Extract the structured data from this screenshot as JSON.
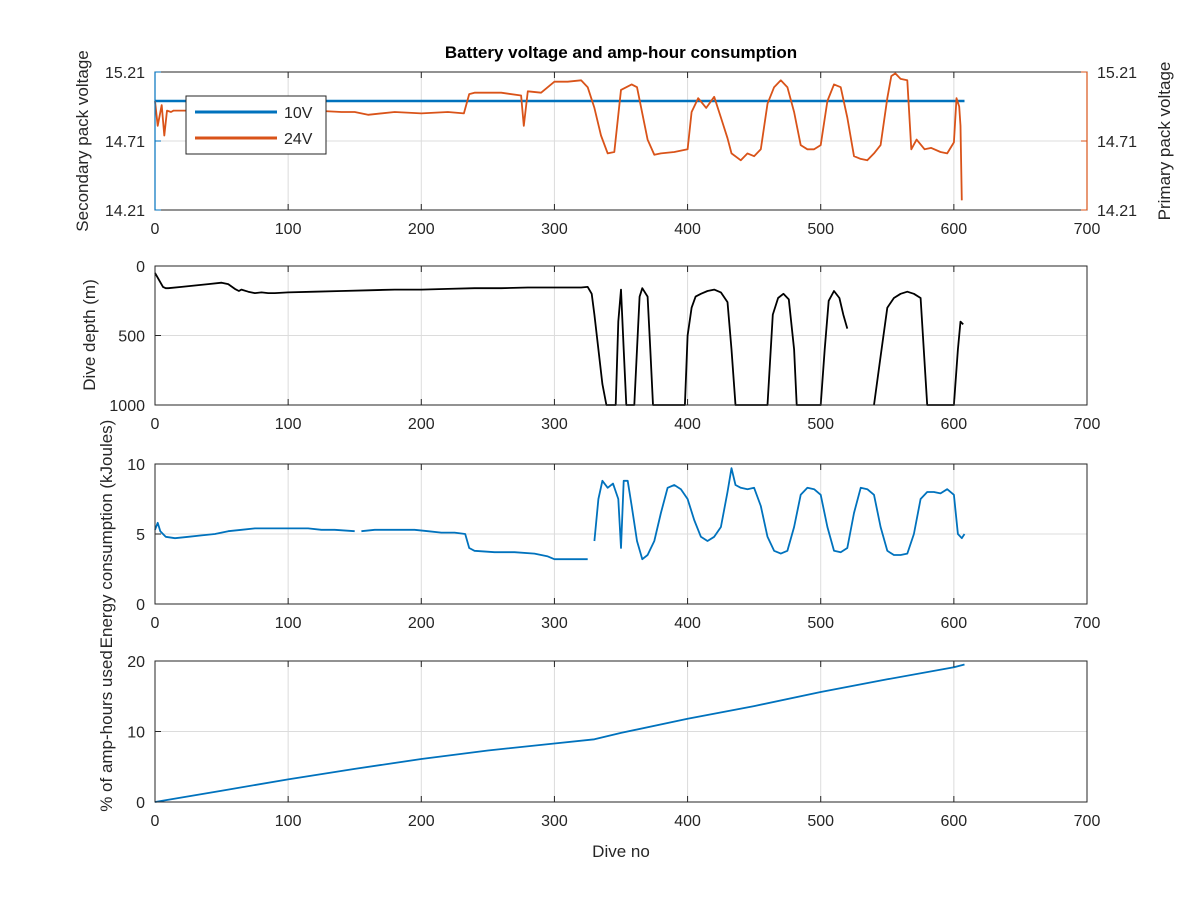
{
  "colors": {
    "blue": "#0072BD",
    "orange": "#D95319",
    "black": "#000000",
    "axis": "#262626",
    "grid": "#dcdcdc"
  },
  "chart_data": [
    {
      "type": "line",
      "title": "Battery voltage and amp-hour consumption",
      "xlabel": "",
      "ylabel_left": "Secondary pack voltage",
      "ylabel_right": "Primary pack voltage",
      "xlim": [
        0,
        700
      ],
      "ylim": [
        14.21,
        15.21
      ],
      "xticks": [
        "0",
        "100",
        "200",
        "300",
        "400",
        "500",
        "600",
        "700"
      ],
      "yticks_left": [
        "14.21",
        "14.71",
        "15.21"
      ],
      "yticks_right": [
        "14.21",
        "14.71",
        "15.21"
      ],
      "grid": true,
      "legend_position": "top-left",
      "legend": [
        "10V",
        "24V"
      ],
      "series": [
        {
          "name": "10V",
          "axis": "left",
          "color": "blue",
          "x": [
            0,
            100,
            200,
            300,
            400,
            500,
            600,
            608
          ],
          "y": [
            15.0,
            15.0,
            15.0,
            15.0,
            15.0,
            15.0,
            15.0,
            15.0
          ]
        },
        {
          "name": "24V",
          "axis": "right",
          "color": "orange",
          "x": [
            0,
            2,
            5,
            7,
            9,
            12,
            14,
            20,
            40,
            60,
            80,
            100,
            120,
            140,
            150,
            160,
            180,
            200,
            220,
            232,
            236,
            240,
            260,
            275,
            277,
            280,
            290,
            300,
            310,
            320,
            325,
            330,
            335,
            340,
            345,
            350,
            358,
            362,
            370,
            375,
            380,
            390,
            400,
            403,
            408,
            414,
            420,
            425,
            430,
            433,
            440,
            445,
            450,
            455,
            460,
            465,
            470,
            475,
            480,
            485,
            490,
            495,
            500,
            505,
            510,
            515,
            520,
            525,
            530,
            535,
            540,
            545,
            550,
            553,
            556,
            560,
            565,
            568,
            572,
            578,
            583,
            590,
            595,
            600,
            602,
            604,
            605,
            606
          ],
          "y": [
            15.0,
            14.82,
            14.97,
            14.75,
            14.93,
            14.92,
            14.93,
            14.93,
            14.93,
            14.93,
            14.92,
            14.92,
            14.93,
            14.92,
            14.92,
            14.9,
            14.92,
            14.91,
            14.92,
            14.91,
            15.05,
            15.06,
            15.06,
            15.04,
            14.82,
            15.07,
            15.06,
            15.14,
            15.14,
            15.15,
            15.1,
            14.95,
            14.75,
            14.62,
            14.63,
            15.08,
            15.12,
            15.1,
            14.72,
            14.61,
            14.62,
            14.63,
            14.65,
            14.92,
            15.02,
            14.95,
            15.03,
            14.88,
            14.73,
            14.62,
            14.57,
            14.62,
            14.6,
            14.65,
            14.98,
            15.1,
            15.15,
            15.1,
            14.92,
            14.68,
            14.65,
            14.65,
            14.68,
            15.0,
            15.12,
            15.1,
            14.88,
            14.6,
            14.58,
            14.57,
            14.62,
            14.68,
            15.02,
            15.18,
            15.2,
            15.16,
            15.15,
            14.65,
            14.72,
            14.65,
            14.66,
            14.63,
            14.62,
            14.7,
            15.02,
            14.96,
            14.82,
            14.28
          ]
        }
      ]
    },
    {
      "type": "line",
      "title": "",
      "xlabel": "",
      "ylabel": "Dive depth (m)",
      "xlim": [
        0,
        700
      ],
      "ylim": [
        0,
        1000
      ],
      "y_reversed": true,
      "xticks": [
        "0",
        "100",
        "200",
        "300",
        "400",
        "500",
        "600",
        "700"
      ],
      "yticks": [
        "0",
        "500",
        "1000"
      ],
      "grid": true,
      "series": [
        {
          "color": "black",
          "x": [
            0,
            3,
            6,
            8,
            10,
            20,
            30,
            40,
            50,
            55,
            60,
            63,
            65,
            70,
            75,
            80,
            85,
            90,
            100,
            120,
            140,
            160,
            180,
            200,
            220,
            240,
            260,
            280,
            300,
            310,
            320,
            325,
            328,
            330,
            333,
            336,
            339,
            342,
            344,
            346,
            348,
            350,
            352,
            354,
            356,
            358,
            360,
            362,
            364,
            366,
            370,
            372,
            374,
            376,
            378,
            380,
            385,
            390,
            395,
            398,
            400,
            403,
            406,
            410,
            415,
            420,
            425,
            430,
            433,
            436,
            440,
            445,
            450,
            455,
            460,
            464,
            468,
            472,
            476,
            480,
            482,
            485,
            490,
            495,
            500,
            503,
            506,
            510,
            514,
            517,
            520
          ],
          "y": [
            50,
            100,
            150,
            160,
            160,
            150,
            140,
            130,
            120,
            130,
            165,
            180,
            170,
            185,
            195,
            190,
            195,
            195,
            190,
            185,
            180,
            175,
            170,
            170,
            165,
            160,
            160,
            155,
            155,
            155,
            155,
            150,
            200,
            350,
            600,
            850,
            1000,
            1000,
            1000,
            1000,
            400,
            170,
            600,
            1000,
            1000,
            1000,
            1000,
            600,
            220,
            160,
            220,
            600,
            1000,
            1000,
            1000,
            1000,
            1000,
            1000,
            1000,
            1000,
            500,
            300,
            220,
            200,
            180,
            170,
            190,
            260,
            600,
            1000,
            1000,
            1000,
            1000,
            1000,
            1000,
            350,
            230,
            200,
            240,
            600,
            1000,
            1000,
            1000,
            1000,
            1000,
            600,
            250,
            180,
            230,
            350,
            450
          ]
        },
        {
          "color": "black",
          "x": [
            540,
            545,
            550,
            555,
            560,
            565,
            570,
            575,
            580,
            585,
            590,
            595,
            600,
            603,
            605,
            607
          ],
          "y": [
            1000,
            650,
            300,
            230,
            200,
            185,
            200,
            230,
            1000,
            1000,
            1000,
            1000,
            1000,
            600,
            400,
            420
          ]
        }
      ]
    },
    {
      "type": "line",
      "title": "",
      "xlabel": "",
      "ylabel": "Energy consumption (kJoules)",
      "xlim": [
        0,
        700
      ],
      "ylim": [
        0,
        10
      ],
      "xticks": [
        "0",
        "100",
        "200",
        "300",
        "400",
        "500",
        "600",
        "700"
      ],
      "yticks": [
        "0",
        "5",
        "10"
      ],
      "grid": true,
      "series": [
        {
          "color": "blue",
          "x": [
            0,
            2,
            4,
            8,
            15,
            25,
            35,
            45,
            55,
            65,
            75,
            85,
            95,
            105,
            115,
            125,
            135,
            150
          ],
          "y": [
            5.3,
            5.8,
            5.2,
            4.8,
            4.7,
            4.8,
            4.9,
            5.0,
            5.2,
            5.3,
            5.4,
            5.4,
            5.4,
            5.4,
            5.4,
            5.3,
            5.3,
            5.2
          ]
        },
        {
          "color": "blue",
          "x": [
            155,
            165,
            175,
            185,
            195,
            205,
            215,
            225,
            233,
            236,
            240,
            255,
            270,
            285,
            295,
            300,
            310,
            325
          ],
          "y": [
            5.2,
            5.3,
            5.3,
            5.3,
            5.3,
            5.2,
            5.1,
            5.1,
            5.0,
            4.0,
            3.8,
            3.7,
            3.7,
            3.6,
            3.4,
            3.2,
            3.2,
            3.2
          ]
        },
        {
          "color": "blue",
          "x": [
            330,
            333,
            336,
            340,
            344,
            348,
            350,
            352,
            355,
            358,
            362,
            366,
            370,
            375,
            380,
            385,
            390,
            395,
            400,
            405,
            410,
            415,
            420,
            425,
            430,
            433,
            436,
            440,
            445,
            450,
            455,
            460,
            465,
            470,
            475,
            480,
            485,
            490,
            495,
            500,
            505,
            510,
            515,
            520,
            525,
            530,
            535,
            540,
            545,
            550,
            555,
            560,
            565,
            570,
            575,
            580,
            585,
            590,
            595,
            600,
            603,
            606,
            608
          ],
          "y": [
            4.5,
            7.5,
            8.8,
            8.3,
            8.6,
            7.5,
            4.0,
            8.8,
            8.8,
            7.0,
            4.5,
            3.2,
            3.5,
            4.5,
            6.5,
            8.3,
            8.5,
            8.2,
            7.5,
            6.0,
            4.8,
            4.5,
            4.8,
            5.5,
            8.0,
            9.7,
            8.5,
            8.3,
            8.2,
            8.3,
            7.0,
            4.8,
            3.8,
            3.6,
            3.8,
            5.5,
            7.8,
            8.3,
            8.2,
            7.8,
            5.5,
            3.8,
            3.7,
            4.0,
            6.5,
            8.3,
            8.2,
            7.8,
            5.5,
            3.8,
            3.5,
            3.5,
            3.6,
            5.0,
            7.5,
            8.0,
            8.0,
            7.9,
            8.2,
            7.8,
            5.0,
            4.7,
            5.0
          ]
        }
      ]
    },
    {
      "type": "line",
      "title": "",
      "xlabel": "Dive no",
      "ylabel": "% of amp-hours used",
      "xlim": [
        0,
        700
      ],
      "ylim": [
        0,
        20
      ],
      "xticks": [
        "0",
        "100",
        "200",
        "300",
        "400",
        "500",
        "600",
        "700"
      ],
      "yticks": [
        "0",
        "10",
        "20"
      ],
      "grid": true,
      "series": [
        {
          "color": "blue",
          "x": [
            0,
            50,
            100,
            150,
            200,
            250,
            300,
            330,
            350,
            400,
            450,
            500,
            550,
            600,
            608
          ],
          "y": [
            0,
            1.6,
            3.2,
            4.7,
            6.1,
            7.3,
            8.3,
            8.9,
            9.8,
            11.8,
            13.6,
            15.6,
            17.4,
            19.1,
            19.5
          ]
        }
      ]
    }
  ]
}
